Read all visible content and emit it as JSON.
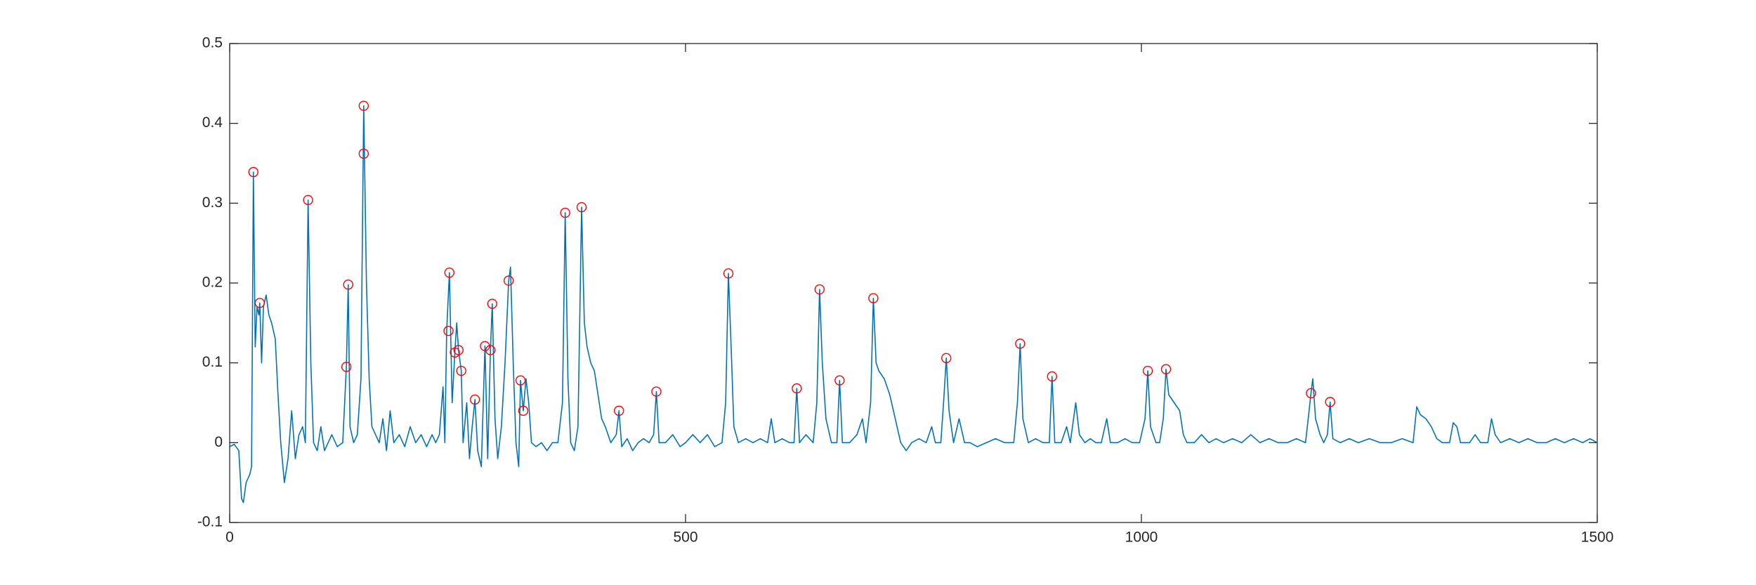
{
  "chart_data": {
    "type": "line",
    "xlim": [
      0,
      1500
    ],
    "xticks": [
      0,
      500,
      1000,
      1500
    ],
    "ylim": [
      -0.1,
      0.5
    ],
    "yticks": [
      -0.1,
      0,
      0.1,
      0.2,
      0.3,
      0.4,
      0.5
    ],
    "grid": false,
    "box": true,
    "series": [
      {
        "style": "line",
        "color": "#0072bd",
        "x": [
          0,
          5,
          10,
          13,
          15,
          18,
          22,
          24,
          26,
          28,
          30,
          32,
          33,
          35,
          37,
          40,
          43,
          46,
          50,
          53,
          56,
          60,
          64,
          68,
          72,
          76,
          80,
          83,
          86,
          89,
          92,
          96,
          100,
          104,
          108,
          112,
          118,
          124,
          128,
          130,
          132,
          136,
          140,
          144,
          147,
          150,
          153,
          156,
          160,
          164,
          168,
          172,
          176,
          180,
          186,
          192,
          198,
          204,
          210,
          216,
          222,
          226,
          230,
          234,
          236,
          238,
          241,
          244,
          247,
          249,
          251,
          254,
          256,
          260,
          263,
          266,
          269,
          272,
          276,
          280,
          283,
          286,
          288,
          291,
          294,
          298,
          302,
          306,
          308,
          311,
          314,
          317,
          319,
          322,
          325,
          328,
          331,
          336,
          342,
          348,
          354,
          360,
          365,
          368,
          371,
          374,
          378,
          382,
          386,
          389,
          392,
          396,
          400,
          404,
          408,
          412,
          418,
          424,
          427,
          430,
          436,
          442,
          448,
          454,
          460,
          465,
          468,
          471,
          478,
          486,
          494,
          500,
          508,
          516,
          524,
          532,
          540,
          544,
          547,
          550,
          553,
          558,
          566,
          574,
          582,
          590,
          594,
          598,
          606,
          614,
          619,
          622,
          625,
          632,
          640,
          644,
          647,
          650,
          654,
          660,
          666,
          669,
          672,
          680,
          688,
          694,
          698,
          703,
          706,
          709,
          712,
          718,
          724,
          730,
          736,
          742,
          748,
          756,
          764,
          770,
          774,
          780,
          783,
          786,
          789,
          794,
          800,
          806,
          812,
          820,
          830,
          840,
          850,
          860,
          864,
          867,
          870,
          876,
          884,
          892,
          899,
          902,
          905,
          912,
          918,
          922,
          928,
          932,
          938,
          944,
          950,
          956,
          962,
          966,
          974,
          982,
          990,
          998,
          1004,
          1007,
          1010,
          1016,
          1020,
          1024,
          1027,
          1030,
          1036,
          1042,
          1046,
          1050,
          1058,
          1066,
          1074,
          1082,
          1090,
          1100,
          1110,
          1120,
          1130,
          1140,
          1150,
          1160,
          1170,
          1180,
          1183,
          1186,
          1188,
          1191,
          1196,
          1200,
          1204,
          1207,
          1210,
          1218,
          1228,
          1238,
          1250,
          1262,
          1274,
          1286,
          1298,
          1302,
          1306,
          1312,
          1318,
          1324,
          1330,
          1338,
          1342,
          1346,
          1350,
          1360,
          1366,
          1372,
          1380,
          1384,
          1388,
          1394,
          1404,
          1414,
          1424,
          1434,
          1444,
          1454,
          1464,
          1474,
          1484,
          1492,
          1500
        ],
        "values": [
          -0.005,
          -0.002,
          -0.01,
          -0.07,
          -0.075,
          -0.05,
          -0.04,
          -0.03,
          0.339,
          0.12,
          0.17,
          0.16,
          0.175,
          0.1,
          0.17,
          0.185,
          0.16,
          0.15,
          0.13,
          0.06,
          0.0,
          -0.05,
          -0.02,
          0.04,
          -0.02,
          0.01,
          0.02,
          0.0,
          0.304,
          0.1,
          0.0,
          -0.01,
          0.02,
          -0.01,
          0.0,
          0.01,
          -0.005,
          0.0,
          0.095,
          0.198,
          0.02,
          0.0,
          0.01,
          0.08,
          0.422,
          0.2,
          0.08,
          0.02,
          0.01,
          0.0,
          0.03,
          -0.01,
          0.04,
          0.0,
          0.01,
          -0.005,
          0.02,
          0.0,
          0.01,
          -0.005,
          0.01,
          0.0,
          0.01,
          0.07,
          0.0,
          0.14,
          0.213,
          0.05,
          0.113,
          0.15,
          0.116,
          0.09,
          0.0,
          0.05,
          -0.02,
          0.02,
          0.054,
          -0.01,
          -0.03,
          0.121,
          -0.02,
          0.116,
          0.174,
          0.03,
          -0.02,
          0.02,
          0.1,
          0.203,
          0.22,
          0.1,
          0.0,
          -0.03,
          0.078,
          0.04,
          0.08,
          0.05,
          0.0,
          -0.005,
          0.0,
          -0.01,
          0.0,
          0.0,
          0.05,
          0.288,
          0.08,
          0.0,
          -0.01,
          0.02,
          0.295,
          0.15,
          0.12,
          0.1,
          0.09,
          0.06,
          0.03,
          0.02,
          0.0,
          0.01,
          0.04,
          -0.005,
          0.005,
          -0.01,
          0.0,
          0.005,
          0.0,
          0.01,
          0.064,
          0.0,
          0.0,
          0.01,
          -0.005,
          0.0,
          0.01,
          0.0,
          0.01,
          -0.005,
          0.0,
          0.05,
          0.212,
          0.12,
          0.02,
          0.0,
          0.005,
          0.0,
          0.005,
          0.0,
          0.03,
          0.0,
          0.005,
          0.0,
          0.0,
          0.068,
          0.0,
          0.01,
          0.0,
          0.05,
          0.192,
          0.1,
          0.03,
          0.0,
          0.0,
          0.078,
          0.0,
          0.0,
          0.01,
          0.03,
          0.0,
          0.05,
          0.181,
          0.1,
          0.09,
          0.08,
          0.06,
          0.03,
          0.0,
          -0.01,
          0.0,
          0.005,
          0.0,
          0.02,
          0.0,
          0.0,
          0.05,
          0.106,
          0.04,
          0.0,
          0.03,
          0.0,
          0.0,
          -0.005,
          0.0,
          0.005,
          0.0,
          0.0,
          0.05,
          0.124,
          0.03,
          0.0,
          0.005,
          0.0,
          0.0,
          0.083,
          0.0,
          0.0,
          0.02,
          0.0,
          0.05,
          0.01,
          0.0,
          0.005,
          0.0,
          0.0,
          0.03,
          0.0,
          0.0,
          0.005,
          0.0,
          0.0,
          0.03,
          0.09,
          0.02,
          0.0,
          0.0,
          0.03,
          0.092,
          0.06,
          0.05,
          0.04,
          0.01,
          0.0,
          0.0,
          0.01,
          0.0,
          0.005,
          0.0,
          0.005,
          0.0,
          0.01,
          0.0,
          0.005,
          0.0,
          0.0,
          0.005,
          0.0,
          0.03,
          0.062,
          0.08,
          0.03,
          0.01,
          0.0,
          0.01,
          0.051,
          0.005,
          0.0,
          0.005,
          0.0,
          0.005,
          0.0,
          0.0,
          0.005,
          0.0,
          0.045,
          0.035,
          0.03,
          0.02,
          0.005,
          0.0,
          0.0,
          0.025,
          0.02,
          0.0,
          0.0,
          0.01,
          0.0,
          0.0,
          0.03,
          0.01,
          0.0,
          0.005,
          0.0,
          0.005,
          0.0,
          0.0,
          0.005,
          0.0,
          0.005,
          0.0,
          0.005,
          0.0
        ]
      },
      {
        "style": "markers",
        "marker": "circle",
        "color": "#ff0000",
        "x": [
          26,
          33,
          86,
          128,
          130,
          147,
          147,
          240,
          241,
          247,
          251,
          254,
          269,
          280,
          286,
          288,
          306,
          319,
          322,
          368,
          386,
          427,
          468,
          547,
          622,
          647,
          669,
          706,
          786,
          867,
          902,
          1007,
          1027,
          1186,
          1207
        ],
        "values": [
          0.339,
          0.175,
          0.304,
          0.095,
          0.198,
          0.362,
          0.422,
          0.14,
          0.213,
          0.113,
          0.116,
          0.09,
          0.054,
          0.121,
          0.116,
          0.174,
          0.203,
          0.078,
          0.04,
          0.288,
          0.295,
          0.04,
          0.064,
          0.212,
          0.068,
          0.192,
          0.078,
          0.181,
          0.106,
          0.124,
          0.083,
          0.09,
          0.092,
          0.062,
          0.051
        ]
      }
    ]
  }
}
